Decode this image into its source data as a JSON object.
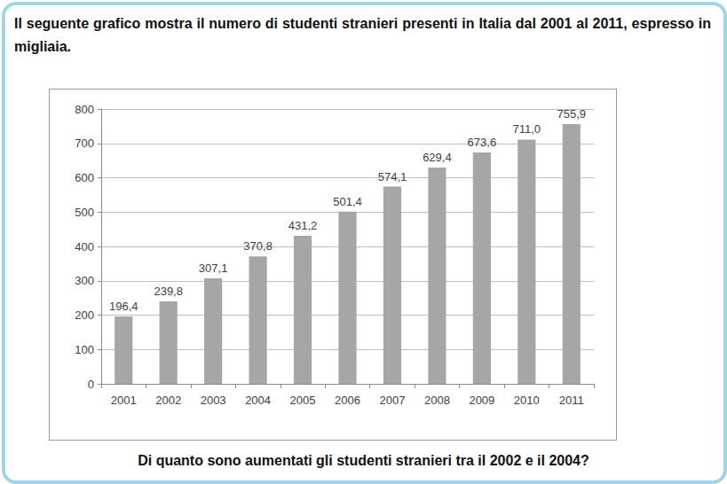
{
  "chart_data": {
    "type": "bar",
    "title": "Il seguente grafico mostra il numero di studenti stranieri presenti in Italia dal 2001 al 2011, espresso in migliaia.",
    "annotations": [
      "Di quanto sono aumentati gli studenti stranieri tra il 2002 e il 2004?"
    ],
    "categories": [
      "2001",
      "2002",
      "2003",
      "2004",
      "2005",
      "2006",
      "2007",
      "2008",
      "2009",
      "2010",
      "2011"
    ],
    "values": [
      196.4,
      239.8,
      307.1,
      370.8,
      431.2,
      501.4,
      574.1,
      629.4,
      673.6,
      711.0,
      755.9
    ],
    "value_labels": [
      "196,4",
      "239,8",
      "307,1",
      "370,8",
      "431,2",
      "501,4",
      "574,1",
      "629,4",
      "673,6",
      "711,0",
      "755,9"
    ],
    "data_labels": true,
    "color": "#a6a6a6",
    "ylim": [
      0,
      800
    ],
    "yticks": [
      0,
      100,
      200,
      300,
      400,
      500,
      600,
      700,
      800
    ],
    "grid": true
  }
}
